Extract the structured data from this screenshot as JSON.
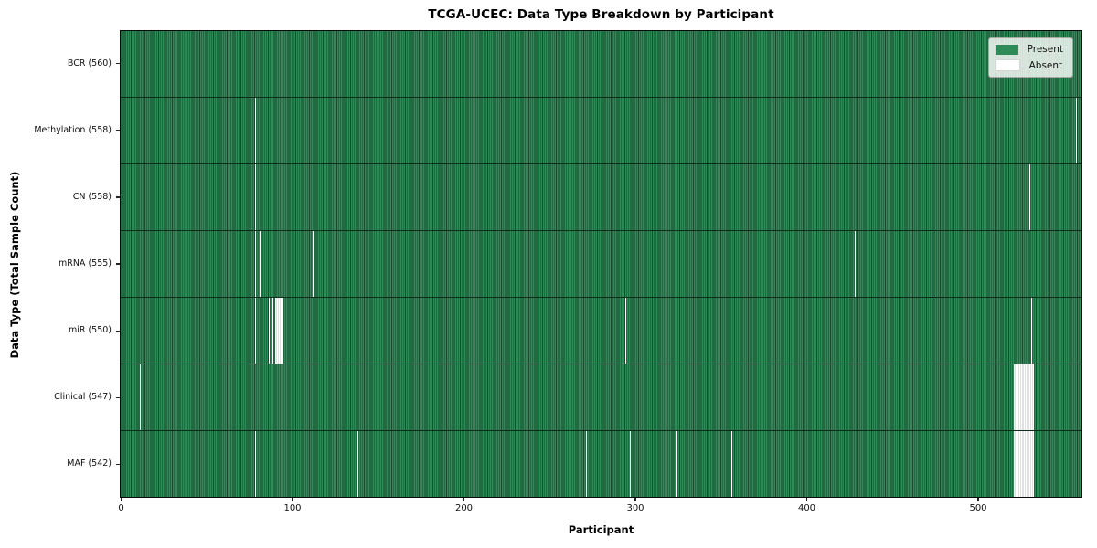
{
  "colors": {
    "present": "#2e8b57",
    "bar_edge": "#17492d",
    "absent": "#ffffff",
    "absent_block_line": "#c2c2c2",
    "row_divider": "#0e2c1b",
    "plot_border": "#0c0c0c"
  },
  "chart_data": {
    "type": "heatmap",
    "title": "TCGA-UCEC: Data Type Breakdown by Participant",
    "xlabel": "Participant",
    "ylabel": "Data Type (Total Sample Count)",
    "n_participants": 560,
    "xlim": [
      0,
      560
    ],
    "x_ticks": [
      0,
      100,
      200,
      300,
      400,
      500
    ],
    "grid": false,
    "legend": {
      "position": "upper right",
      "entries": [
        {
          "label": "Present",
          "color": "#2e8b57"
        },
        {
          "label": "Absent",
          "color": "#ffffff"
        }
      ]
    },
    "rows": [
      {
        "name": "bcr",
        "label": "BCR (560)",
        "total": 560,
        "absent_participants": []
      },
      {
        "name": "methylation",
        "label": "Methylation (558)",
        "total": 558,
        "absent_participants": [
          78,
          557
        ]
      },
      {
        "name": "cn",
        "label": "CN (558)",
        "total": 558,
        "absent_participants": [
          78,
          530
        ]
      },
      {
        "name": "mrna",
        "label": "mRNA (555)",
        "total": 555,
        "absent_participants": [
          78,
          81,
          112,
          428,
          473
        ]
      },
      {
        "name": "mir",
        "label": "miR (550)",
        "total": 550,
        "absent_participants": [
          78,
          86,
          88,
          90,
          91,
          92,
          93,
          94,
          294,
          531
        ]
      },
      {
        "name": "clinical",
        "label": "Clinical (547)",
        "total": 547,
        "absent_participants": [
          11,
          521,
          522,
          523,
          524,
          525,
          526,
          527,
          528,
          529,
          530,
          531,
          532
        ]
      },
      {
        "name": "maf",
        "label": "MAF (542)",
        "total": 542,
        "absent_participants": [
          78,
          138,
          271,
          297,
          324,
          356,
          521,
          522,
          523,
          524,
          525,
          526,
          527,
          528,
          529,
          530,
          531,
          532
        ]
      }
    ]
  }
}
